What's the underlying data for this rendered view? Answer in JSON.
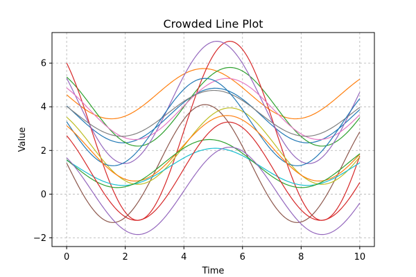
{
  "chart_data": {
    "type": "line",
    "title": "Crowded Line Plot",
    "xlabel": "Time",
    "ylabel": "Value",
    "xlim": [
      -0.5,
      10.5
    ],
    "ylim": [
      -2.4,
      7.4
    ],
    "xticks": [
      0,
      2,
      4,
      6,
      8,
      10
    ],
    "yticks": [
      -2,
      0,
      2,
      4,
      6
    ],
    "ytick_labels": [
      "−2",
      "0",
      "2",
      "4",
      "6"
    ],
    "grid": true,
    "x_range": [
      0,
      10
    ],
    "series": [
      {
        "color": "#1f77b4",
        "offset": 3.6,
        "amplitude": 1.25,
        "phase": 0.5
      },
      {
        "color": "#ff7f0e",
        "offset": 4.6,
        "amplitude": 1.15,
        "phase": 0.9
      },
      {
        "color": "#2ca02c",
        "offset": 4.0,
        "amplitude": 1.8,
        "phase": 0.0
      },
      {
        "color": "#d62728",
        "offset": 2.9,
        "amplitude": 4.1,
        "phase": 0.0
      },
      {
        "color": "#9467bd",
        "offset": 4.2,
        "amplitude": 2.8,
        "phase": 0.45
      },
      {
        "color": "#8c564b",
        "offset": 1.4,
        "amplitude": 2.7,
        "phase": 0.85
      },
      {
        "color": "#e377c2",
        "offset": 3.9,
        "amplitude": 1.4,
        "phase": 0.1
      },
      {
        "color": "#7f7f7f",
        "offset": 3.7,
        "amplitude": 1.05,
        "phase": 0.55
      },
      {
        "color": "#bcbd22",
        "offset": 2.2,
        "amplitude": 1.75,
        "phase": 0.0
      },
      {
        "color": "#17becf",
        "offset": 1.25,
        "amplitude": 0.85,
        "phase": 0.5
      },
      {
        "color": "#1f77b4",
        "offset": 3.3,
        "amplitude": 2.0,
        "phase": 0.85
      },
      {
        "color": "#ff7f0e",
        "offset": 2.1,
        "amplitude": 1.5,
        "phase": 0.1
      },
      {
        "color": "#2ca02c",
        "offset": 1.4,
        "amplitude": 1.1,
        "phase": 0.7
      },
      {
        "color": "#d62728",
        "offset": 1.05,
        "amplitude": 2.25,
        "phase": 0.05
      },
      {
        "color": "#9467bd",
        "offset": 0.15,
        "amplitude": 2.0,
        "phase": 0.0
      }
    ]
  }
}
